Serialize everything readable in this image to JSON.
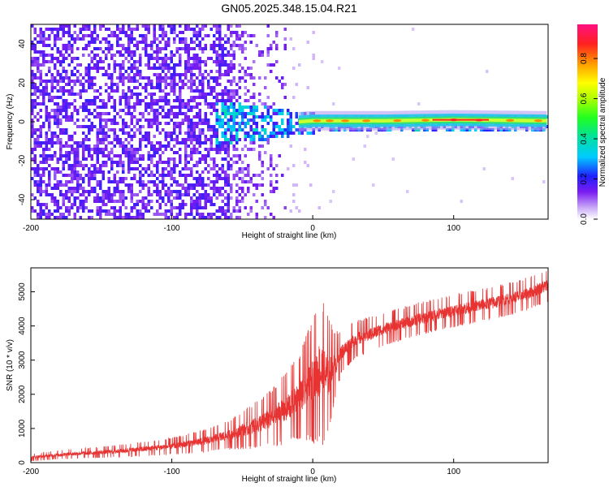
{
  "title": "GN05.2025.348.15.04.R21",
  "spectrogram": {
    "type": "heatmap",
    "xlabel": "Height of straight line (km)",
    "ylabel": "Frequency (Hz)",
    "xlim": [
      -200,
      167
    ],
    "ylim": [
      -50,
      50
    ],
    "xticks": [
      "-200",
      "-100",
      "0",
      "100"
    ],
    "xtick_values": [
      -200,
      -100,
      0,
      100
    ],
    "yticks": [
      "40",
      "20",
      "0",
      "-20",
      "-40"
    ],
    "ytick_values": [
      40,
      20,
      0,
      -20,
      -40
    ],
    "colorbar": {
      "label": "Normalized spectral amplitude",
      "ticks": [
        "0.0",
        "0.2",
        "0.4",
        "0.6",
        "0.8"
      ],
      "tick_values": [
        0.0,
        0.2,
        0.4,
        0.6,
        0.8
      ],
      "range": [
        0,
        0.97
      ]
    },
    "noise_region_x": [
      -200,
      -20
    ],
    "signal_line": [
      {
        "x": -10,
        "f": 0
      },
      {
        "x": 0,
        "f": 0.5
      },
      {
        "x": 20,
        "f": 0.5
      },
      {
        "x": 50,
        "f": 0.5
      },
      {
        "x": 100,
        "f": 1
      },
      {
        "x": 167,
        "f": 0.5
      }
    ]
  },
  "chart_data": {
    "type": "line",
    "title": "",
    "xlabel": "Height of straight line (km)",
    "ylabel": "SNR (10 * v/v)",
    "xlim": [
      -200,
      167
    ],
    "ylim": [
      0,
      5700
    ],
    "xticks": [
      "-200",
      "-100",
      "0",
      "100"
    ],
    "xtick_values": [
      -200,
      -100,
      0,
      100
    ],
    "yticks": [
      "0",
      "1000",
      "2000",
      "3000",
      "4000",
      "5000"
    ],
    "ytick_values": [
      0,
      1000,
      2000,
      3000,
      4000,
      5000
    ],
    "color": "#e83333",
    "series": [
      {
        "name": "",
        "x": [
          -200,
          -175,
          -150,
          -125,
          -100,
          -75,
          -60,
          -50,
          -40,
          -30,
          -20,
          -10,
          0,
          5,
          10,
          15,
          20,
          30,
          50,
          75,
          100,
          125,
          150,
          167
        ],
        "y": [
          150,
          250,
          300,
          380,
          480,
          650,
          800,
          950,
          1100,
          1300,
          1550,
          1900,
          2400,
          2700,
          2500,
          2800,
          3200,
          3600,
          3900,
          4200,
          4450,
          4650,
          4900,
          5200
        ],
        "spread": [
          80,
          100,
          120,
          150,
          180,
          250,
          300,
          400,
          500,
          600,
          750,
          900,
          1300,
          1600,
          1400,
          800,
          450,
          400,
          350,
          350,
          350,
          350,
          350,
          350
        ]
      }
    ]
  }
}
